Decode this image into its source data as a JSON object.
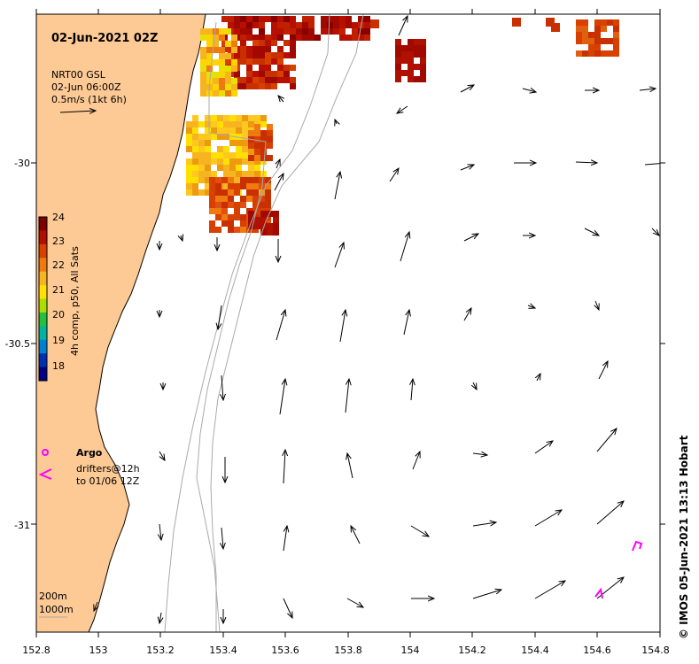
{
  "map": {
    "title": "02-Jun-2021 02Z",
    "legend_vectors": {
      "line1": "NRT00 GSL",
      "line2": "02-Jun 06:00Z",
      "line3": "0.5m/s (1kt 6h)"
    },
    "colorbar": {
      "title": "4h comp, p50, All Sats",
      "ticks": [
        "24",
        "23",
        "22",
        "21",
        "20",
        "19",
        "18"
      ],
      "colors": [
        "#7a0000",
        "#b01000",
        "#d84000",
        "#ee7a10",
        "#f5b420",
        "#ffe000",
        "#a8e000",
        "#20c040",
        "#00b4a0",
        "#0080d0",
        "#0030b0",
        "#000080"
      ]
    },
    "argo_label": "Argo",
    "drifters_label_1": "drifters@12h",
    "drifters_label_2": "to 01/06 12Z",
    "depth_label_1": "200m",
    "depth_label_2": "1000m",
    "credit": "© IMOS 05-Jun-2021 13:13 Hobart",
    "x_ticks": [
      "152.8",
      "153",
      "153.2",
      "153.4",
      "153.6",
      "153.8",
      "154",
      "154.2",
      "154.4",
      "154.6",
      "154.8"
    ],
    "y_ticks": [
      "-30",
      "-30.5",
      "-31"
    ],
    "colors": {
      "land": "#fdc994",
      "argo": "#ff00ff",
      "drifter": "#ff00ff",
      "isobath": "#aaaaaa"
    }
  }
}
